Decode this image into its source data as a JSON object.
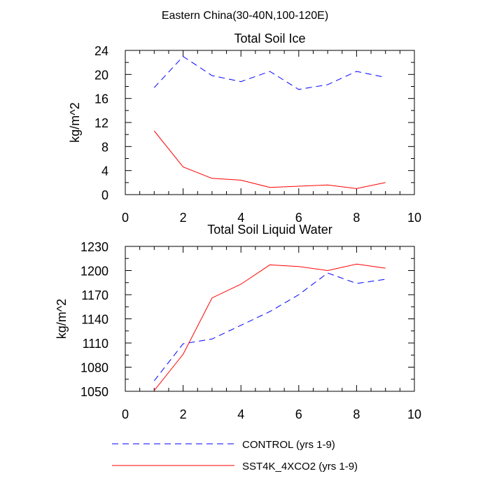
{
  "figure_title": "Eastern China(30-40N,100-120E)",
  "colors": {
    "control": "#0000ff",
    "experiment": "#ff0000",
    "axis": "#000000"
  },
  "legend": [
    {
      "label": "CONTROL (yrs 1-9)",
      "style": "dashed",
      "color": "#0000ff"
    },
    {
      "label": "SST4K_4XCO2 (yrs 1-9)",
      "style": "solid",
      "color": "#ff0000"
    }
  ],
  "chart_data": [
    {
      "type": "line",
      "title": "Total Soil Ice",
      "xlabel": "",
      "ylabel": "kg/m^2",
      "xlim": [
        0,
        10
      ],
      "ylim": [
        0,
        24
      ],
      "xticks": [
        0,
        2,
        4,
        6,
        8,
        10
      ],
      "yticks": [
        0,
        4,
        8,
        12,
        16,
        20,
        24
      ],
      "x": [
        1,
        2,
        3,
        4,
        5,
        6,
        7,
        8,
        9
      ],
      "series": [
        {
          "name": "CONTROL (yrs 1-9)",
          "style": "dashed",
          "values": [
            17.8,
            23.0,
            19.8,
            18.8,
            20.5,
            17.5,
            18.3,
            20.5,
            19.5
          ]
        },
        {
          "name": "SST4K_4XCO2 (yrs 1-9)",
          "style": "solid",
          "values": [
            10.6,
            4.6,
            2.7,
            2.4,
            1.2,
            1.4,
            1.6,
            1.0,
            2.0
          ]
        }
      ]
    },
    {
      "type": "line",
      "title": "Total Soil Liquid Water",
      "xlabel": "",
      "ylabel": "kg/m^2",
      "xlim": [
        0,
        10
      ],
      "ylim": [
        1050,
        1230
      ],
      "xticks": [
        0,
        2,
        4,
        6,
        8,
        10
      ],
      "yticks": [
        1050,
        1080,
        1110,
        1140,
        1170,
        1200,
        1230
      ],
      "x": [
        1,
        2,
        3,
        4,
        5,
        6,
        7,
        8,
        9
      ],
      "series": [
        {
          "name": "CONTROL (yrs 1-9)",
          "style": "dashed",
          "values": [
            1063,
            1109,
            1115,
            1132,
            1149,
            1170,
            1197,
            1184,
            1189
          ]
        },
        {
          "name": "SST4K_4XCO2 (yrs 1-9)",
          "style": "solid",
          "values": [
            1051,
            1096,
            1166,
            1183,
            1207,
            1205,
            1200,
            1208,
            1203
          ]
        }
      ]
    }
  ]
}
